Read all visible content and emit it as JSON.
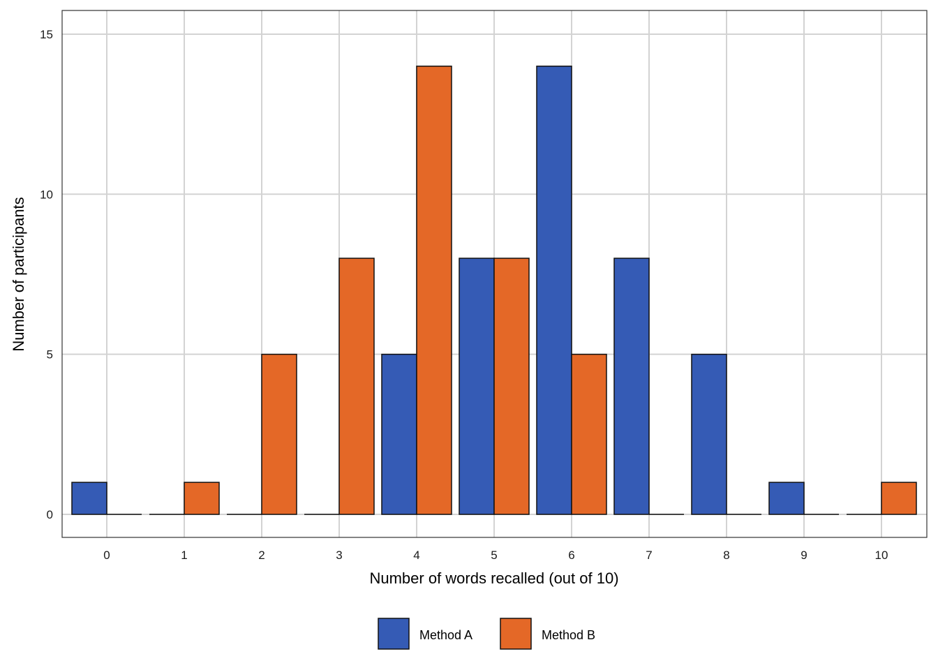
{
  "chart_data": {
    "type": "bar",
    "title": "",
    "xlabel": "Number of words recalled (out of 10)",
    "ylabel": "Number of participants",
    "categories": [
      "0",
      "1",
      "2",
      "3",
      "4",
      "5",
      "6",
      "7",
      "8",
      "9",
      "10"
    ],
    "yticks": [
      "0",
      "5",
      "10",
      "15"
    ],
    "ylim": [
      -0.7,
      15.7
    ],
    "grid": true,
    "legend_position": "bottom",
    "series": [
      {
        "name": "Method A",
        "color": "#355BB5",
        "values": [
          1,
          0,
          0,
          0,
          5,
          8,
          14,
          8,
          5,
          1,
          0
        ]
      },
      {
        "name": "Method B",
        "color": "#E46827",
        "values": [
          0,
          1,
          5,
          8,
          14,
          8,
          5,
          0,
          0,
          0,
          1
        ]
      }
    ]
  }
}
